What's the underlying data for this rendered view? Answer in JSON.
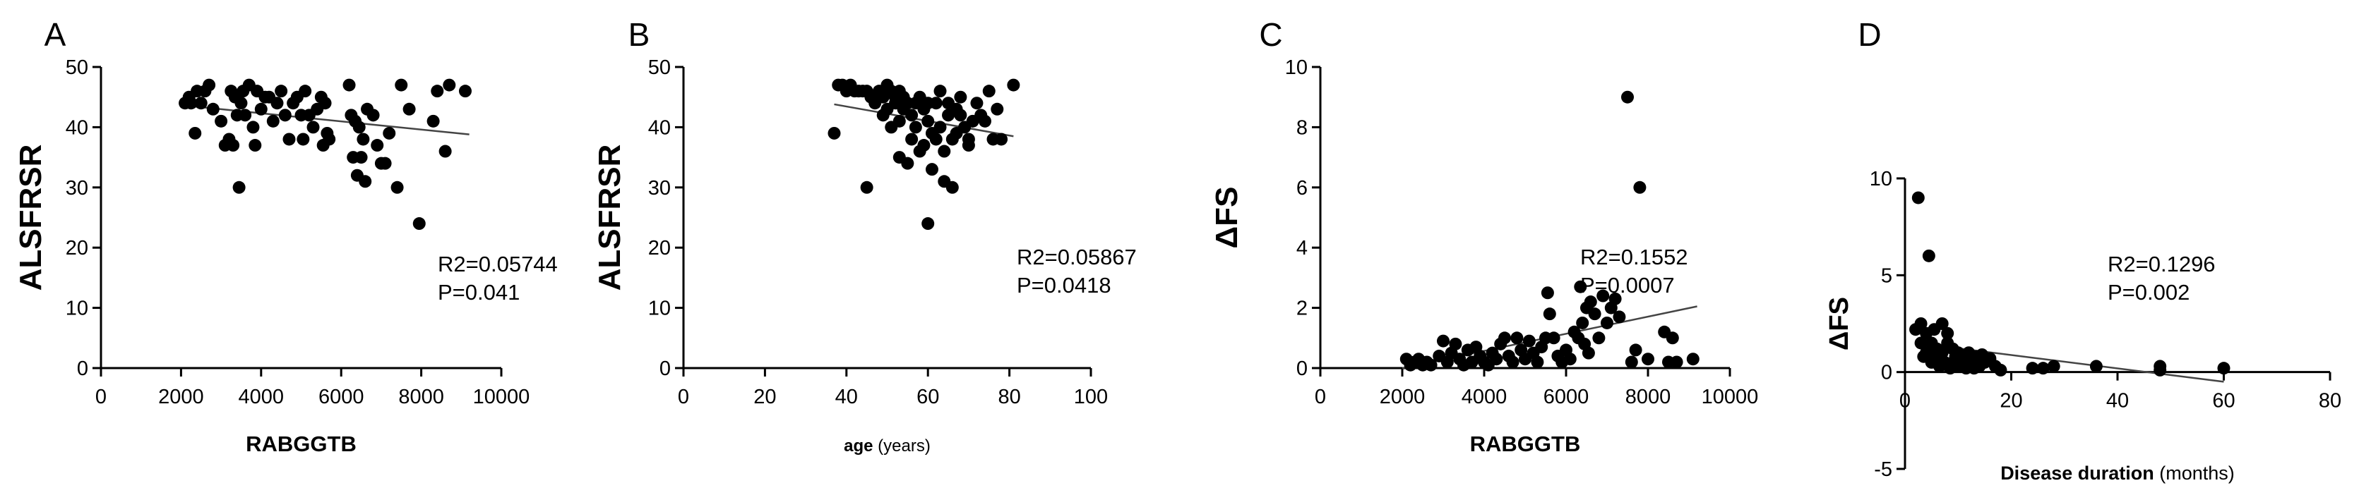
{
  "chart_data": [
    {
      "type": "scatter",
      "panel_letter": "A",
      "xlabel": "RABGGTB",
      "xlabel_unit": "",
      "ylabel": "ALSFRSR",
      "xlim": [
        0,
        10000
      ],
      "ylim": [
        0,
        50
      ],
      "xticks": [
        "0",
        "2000",
        "4000",
        "6000",
        "8000",
        "10000"
      ],
      "yticks": [
        "0",
        "10",
        "20",
        "30",
        "40",
        "50"
      ],
      "annotation": [
        "R2=0.05744",
        "P=0.041"
      ],
      "trend_line": {
        "x": [
          2100,
          9200
        ],
        "y": [
          43.6,
          38.8
        ]
      },
      "points": [
        [
          2100,
          44
        ],
        [
          2200,
          45
        ],
        [
          2250,
          44
        ],
        [
          2350,
          39
        ],
        [
          2400,
          46
        ],
        [
          2500,
          44
        ],
        [
          2600,
          46
        ],
        [
          2700,
          47
        ],
        [
          2800,
          43
        ],
        [
          3000,
          41
        ],
        [
          3100,
          37
        ],
        [
          3200,
          38
        ],
        [
          3250,
          46
        ],
        [
          3300,
          37
        ],
        [
          3350,
          45
        ],
        [
          3400,
          42
        ],
        [
          3450,
          30
        ],
        [
          3500,
          44
        ],
        [
          3550,
          46
        ],
        [
          3600,
          42
        ],
        [
          3700,
          47
        ],
        [
          3800,
          40
        ],
        [
          3850,
          37
        ],
        [
          3900,
          46
        ],
        [
          4000,
          43
        ],
        [
          4100,
          45
        ],
        [
          4200,
          45
        ],
        [
          4300,
          41
        ],
        [
          4400,
          44
        ],
        [
          4500,
          46
        ],
        [
          4600,
          42
        ],
        [
          4700,
          38
        ],
        [
          4800,
          44
        ],
        [
          4900,
          45
        ],
        [
          5000,
          42
        ],
        [
          5050,
          38
        ],
        [
          5100,
          46
        ],
        [
          5200,
          42
        ],
        [
          5300,
          40
        ],
        [
          5400,
          43
        ],
        [
          5500,
          45
        ],
        [
          5550,
          37
        ],
        [
          5600,
          44
        ],
        [
          5650,
          39
        ],
        [
          5700,
          38
        ],
        [
          6200,
          47
        ],
        [
          6250,
          42
        ],
        [
          6300,
          35
        ],
        [
          6350,
          41
        ],
        [
          6400,
          32
        ],
        [
          6450,
          40
        ],
        [
          6500,
          35
        ],
        [
          6550,
          38
        ],
        [
          6600,
          31
        ],
        [
          6650,
          43
        ],
        [
          6800,
          42
        ],
        [
          6900,
          37
        ],
        [
          7000,
          34
        ],
        [
          7100,
          34
        ],
        [
          7200,
          39
        ],
        [
          7400,
          30
        ],
        [
          7500,
          47
        ],
        [
          7700,
          43
        ],
        [
          7950,
          24
        ],
        [
          8300,
          41
        ],
        [
          8400,
          46
        ],
        [
          8600,
          36
        ],
        [
          8700,
          47
        ],
        [
          9100,
          46
        ]
      ]
    },
    {
      "type": "scatter",
      "panel_letter": "B",
      "xlabel": "age",
      "xlabel_unit": "(years)",
      "ylabel": "ALSFRSR",
      "xlim": [
        0,
        100
      ],
      "ylim": [
        0,
        50
      ],
      "xticks": [
        "0",
        "20",
        "40",
        "60",
        "80",
        "100"
      ],
      "yticks": [
        "0",
        "10",
        "20",
        "30",
        "40",
        "50"
      ],
      "annotation": [
        "R2=0.05867",
        "P=0.0418"
      ],
      "trend_line": {
        "x": [
          37,
          81
        ],
        "y": [
          43.8,
          38.5
        ]
      },
      "points": [
        [
          37,
          39
        ],
        [
          38,
          47
        ],
        [
          39,
          47
        ],
        [
          40,
          46
        ],
        [
          41,
          47
        ],
        [
          42,
          46
        ],
        [
          43,
          46
        ],
        [
          44,
          46
        ],
        [
          45,
          30
        ],
        [
          45,
          46
        ],
        [
          46,
          45
        ],
        [
          47,
          44
        ],
        [
          48,
          46
        ],
        [
          49,
          45
        ],
        [
          49,
          42
        ],
        [
          50,
          47
        ],
        [
          50,
          43
        ],
        [
          51,
          46
        ],
        [
          51,
          40
        ],
        [
          52,
          45
        ],
        [
          52,
          44
        ],
        [
          53,
          46
        ],
        [
          53,
          41
        ],
        [
          53,
          35
        ],
        [
          54,
          45
        ],
        [
          54,
          43
        ],
        [
          55,
          44
        ],
        [
          55,
          34
        ],
        [
          56,
          42
        ],
        [
          56,
          38
        ],
        [
          57,
          44
        ],
        [
          57,
          40
        ],
        [
          58,
          45
        ],
        [
          58,
          36
        ],
        [
          59,
          43
        ],
        [
          59,
          37
        ],
        [
          60,
          44
        ],
        [
          60,
          41
        ],
        [
          60,
          24
        ],
        [
          61,
          39
        ],
        [
          61,
          33
        ],
        [
          62,
          44
        ],
        [
          62,
          38
        ],
        [
          63,
          46
        ],
        [
          63,
          40
        ],
        [
          64,
          36
        ],
        [
          64,
          31
        ],
        [
          65,
          44
        ],
        [
          65,
          42
        ],
        [
          66,
          30
        ],
        [
          66,
          38
        ],
        [
          67,
          43
        ],
        [
          67,
          39
        ],
        [
          68,
          45
        ],
        [
          68,
          42
        ],
        [
          69,
          40
        ],
        [
          70,
          37
        ],
        [
          70,
          38
        ],
        [
          71,
          41
        ],
        [
          72,
          44
        ],
        [
          73,
          42
        ],
        [
          74,
          41
        ],
        [
          75,
          46
        ],
        [
          76,
          38
        ],
        [
          77,
          43
        ],
        [
          78,
          38
        ],
        [
          81,
          47
        ]
      ]
    },
    {
      "type": "scatter",
      "panel_letter": "C",
      "xlabel": "RABGGTB",
      "xlabel_unit": "",
      "ylabel": "ΔFS",
      "xlim": [
        0,
        10000
      ],
      "ylim": [
        0,
        10
      ],
      "xticks": [
        "0",
        "2000",
        "4000",
        "6000",
        "8000",
        "10000"
      ],
      "yticks": [
        "0",
        "2",
        "4",
        "6",
        "8",
        "10"
      ],
      "annotation": [
        "R2=0.1552",
        "P=0.0007"
      ],
      "trend_line": {
        "x": [
          2000,
          9200
        ],
        "y": [
          0.0,
          2.05
        ]
      },
      "points": [
        [
          2100,
          0.3
        ],
        [
          2200,
          0.1
        ],
        [
          2300,
          0.2
        ],
        [
          2400,
          0.3
        ],
        [
          2500,
          0.1
        ],
        [
          2600,
          0.2
        ],
        [
          2700,
          0.1
        ],
        [
          2900,
          0.4
        ],
        [
          3000,
          0.9
        ],
        [
          3100,
          0.2
        ],
        [
          3200,
          0.5
        ],
        [
          3300,
          0.8
        ],
        [
          3400,
          0.3
        ],
        [
          3500,
          0.1
        ],
        [
          3600,
          0.6
        ],
        [
          3700,
          0.2
        ],
        [
          3800,
          0.7
        ],
        [
          3900,
          0.4
        ],
        [
          4000,
          0.2
        ],
        [
          4100,
          0.1
        ],
        [
          4200,
          0.5
        ],
        [
          4300,
          0.3
        ],
        [
          4400,
          0.8
        ],
        [
          4500,
          1.0
        ],
        [
          4600,
          0.4
        ],
        [
          4700,
          0.2
        ],
        [
          4800,
          1.0
        ],
        [
          4900,
          0.6
        ],
        [
          5000,
          0.3
        ],
        [
          5100,
          0.9
        ],
        [
          5200,
          0.5
        ],
        [
          5300,
          0.2
        ],
        [
          5400,
          0.7
        ],
        [
          5500,
          1.0
        ],
        [
          5550,
          2.5
        ],
        [
          5600,
          1.8
        ],
        [
          5700,
          1.0
        ],
        [
          5800,
          0.4
        ],
        [
          5900,
          0.2
        ],
        [
          6000,
          0.6
        ],
        [
          6100,
          0.3
        ],
        [
          6200,
          1.2
        ],
        [
          6300,
          1.0
        ],
        [
          6350,
          2.7
        ],
        [
          6400,
          1.5
        ],
        [
          6450,
          0.8
        ],
        [
          6500,
          2.0
        ],
        [
          6550,
          0.5
        ],
        [
          6600,
          2.2
        ],
        [
          6700,
          1.8
        ],
        [
          6800,
          1.0
        ],
        [
          6900,
          2.4
        ],
        [
          7000,
          1.5
        ],
        [
          7100,
          2.0
        ],
        [
          7200,
          2.3
        ],
        [
          7300,
          1.7
        ],
        [
          7500,
          9.0
        ],
        [
          7600,
          0.2
        ],
        [
          7700,
          0.6
        ],
        [
          7800,
          6.0
        ],
        [
          8000,
          0.3
        ],
        [
          8400,
          1.2
        ],
        [
          8500,
          0.2
        ],
        [
          8600,
          1.0
        ],
        [
          8700,
          0.2
        ],
        [
          9100,
          0.3
        ]
      ]
    },
    {
      "type": "scatter",
      "panel_letter": "D",
      "xlabel": "Disease duration",
      "xlabel_unit": "(months)",
      "ylabel": "ΔFS",
      "xlim": [
        0,
        80
      ],
      "ylim": [
        -5,
        10
      ],
      "xticks": [
        "0",
        "20",
        "40",
        "60",
        "80"
      ],
      "yticks": [
        "-5",
        "0",
        "5",
        "10"
      ],
      "annotation": [
        "R2=0.1296",
        "P=0.002"
      ],
      "trend_line": {
        "x": [
          2,
          60
        ],
        "y": [
          1.5,
          -0.5
        ]
      },
      "points": [
        [
          2,
          2.2
        ],
        [
          2.5,
          9.0
        ],
        [
          3,
          1.5
        ],
        [
          3,
          2.5
        ],
        [
          3.5,
          0.8
        ],
        [
          4,
          1.0
        ],
        [
          4,
          2.0
        ],
        [
          4.5,
          6.0
        ],
        [
          5,
          0.5
        ],
        [
          5,
          1.5
        ],
        [
          5.5,
          2.2
        ],
        [
          6,
          0.8
        ],
        [
          6,
          1.2
        ],
        [
          6.5,
          0.3
        ],
        [
          7,
          2.5
        ],
        [
          7,
          1.0
        ],
        [
          7.5,
          0.5
        ],
        [
          8,
          2.0
        ],
        [
          8,
          1.5
        ],
        [
          8.5,
          0.2
        ],
        [
          9,
          1.2
        ],
        [
          9,
          0.5
        ],
        [
          9.5,
          0.8
        ],
        [
          10,
          1.0
        ],
        [
          10,
          0.3
        ],
        [
          11,
          0.6
        ],
        [
          11.5,
          0.2
        ],
        [
          12,
          1.0
        ],
        [
          12.5,
          0.5
        ],
        [
          13,
          0.2
        ],
        [
          13.5,
          0.8
        ],
        [
          14,
          0.3
        ],
        [
          14.5,
          0.9
        ],
        [
          15,
          0.5
        ],
        [
          16,
          0.7
        ],
        [
          17,
          0.3
        ],
        [
          18,
          0.1
        ],
        [
          24,
          0.2
        ],
        [
          26,
          0.2
        ],
        [
          28,
          0.3
        ],
        [
          36,
          0.3
        ],
        [
          48,
          0.3
        ],
        [
          48,
          0.1
        ],
        [
          60,
          0.2
        ]
      ]
    }
  ]
}
